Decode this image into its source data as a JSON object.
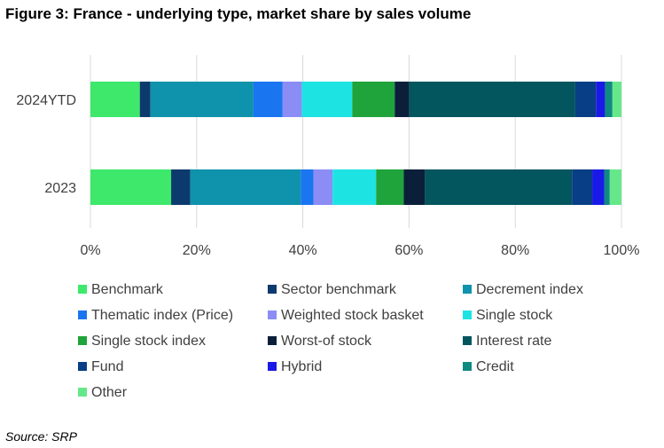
{
  "title": "Figure 3: France - underlying type, market share by sales volume",
  "source": "Source: SRP",
  "chart_data": {
    "type": "bar",
    "orientation": "horizontal",
    "stacked": true,
    "normalized": true,
    "categories": [
      "2024YTD",
      "2023"
    ],
    "xlim": [
      0,
      100
    ],
    "xticks": [
      "0%",
      "20%",
      "40%",
      "60%",
      "80%",
      "100%"
    ],
    "grid": "vertical",
    "legend_position": "bottom",
    "series": [
      {
        "name": "Benchmark",
        "color": "#3de86b",
        "values": [
          9.3,
          15.2
        ]
      },
      {
        "name": "Sector benchmark",
        "color": "#0d3a6e",
        "values": [
          2.0,
          3.6
        ]
      },
      {
        "name": "Decrement index",
        "color": "#0f92ab",
        "values": [
          19.4,
          20.8
        ]
      },
      {
        "name": "Thematic index (Price)",
        "color": "#1a75f0",
        "values": [
          5.5,
          2.4
        ]
      },
      {
        "name": "Weighted stock basket",
        "color": "#8c8cf5",
        "values": [
          3.6,
          3.6
        ]
      },
      {
        "name": "Single stock",
        "color": "#1ee3e3",
        "values": [
          9.5,
          8.2
        ]
      },
      {
        "name": "Single stock index",
        "color": "#1fa33b",
        "values": [
          8.0,
          5.2
        ]
      },
      {
        "name": "Worst-of stock",
        "color": "#0b1f3a",
        "values": [
          2.7,
          4.0
        ]
      },
      {
        "name": "Interest rate",
        "color": "#03555e",
        "values": [
          31.3,
          27.7
        ]
      },
      {
        "name": "Fund",
        "color": "#083e85",
        "values": [
          3.9,
          3.8
        ]
      },
      {
        "name": "Hybrid",
        "color": "#1a1ae6",
        "values": [
          1.7,
          2.3
        ]
      },
      {
        "name": "Credit",
        "color": "#0f8a80",
        "values": [
          1.4,
          1.0
        ]
      },
      {
        "name": "Other",
        "color": "#66e88a",
        "values": [
          1.7,
          2.2
        ]
      }
    ]
  }
}
